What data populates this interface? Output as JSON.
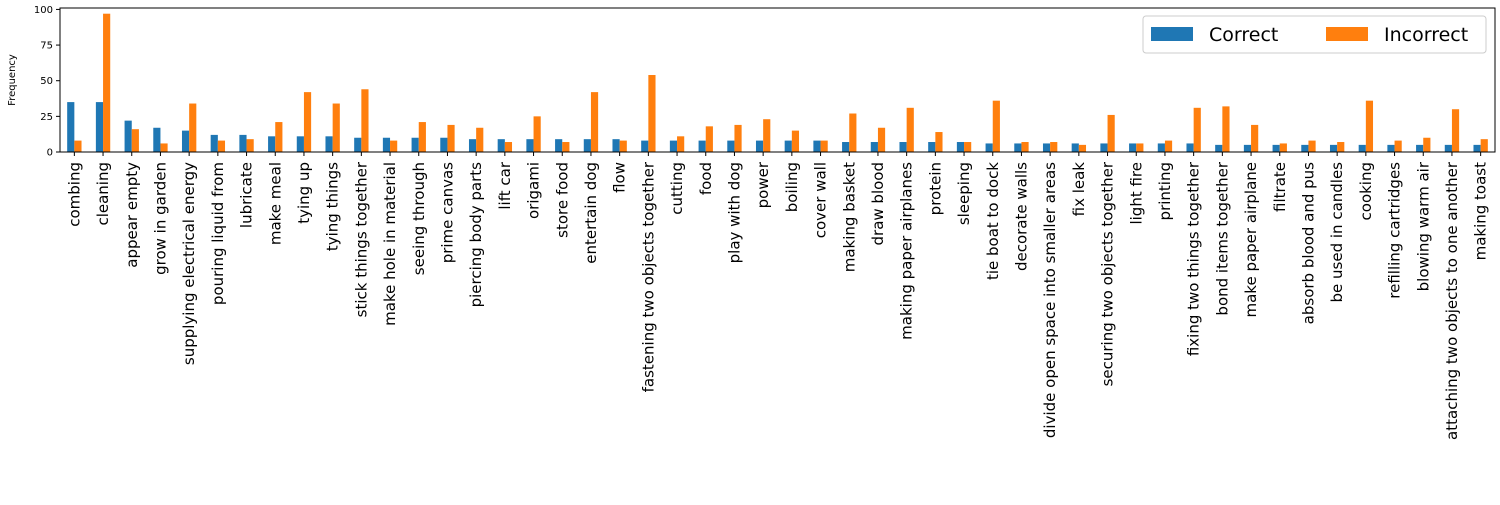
{
  "chart_data": {
    "type": "bar",
    "ylabel": "Frequency",
    "xlabel": "",
    "title": "",
    "ylim": [
      0,
      101
    ],
    "yticks": [
      0,
      25,
      50,
      75,
      100
    ],
    "grid": false,
    "legend_position": "top-right",
    "categories": [
      "combing",
      "cleaning",
      "appear empty",
      "grow in garden",
      "supplying electrical energy",
      "pouring liquid from",
      "lubricate",
      "make meal",
      "tying up",
      "tying things",
      "stick things together",
      "make hole in material",
      "seeing through",
      "prime canvas",
      "piercing body parts",
      "lift car",
      "origami",
      "store food",
      "entertain dog",
      "flow",
      "fastening two objects together",
      "cutting",
      "food",
      "play with dog",
      "power",
      "boiling",
      "cover wall",
      "making basket",
      "draw blood",
      "making paper airplanes",
      "protein",
      "sleeping",
      "tie boat to dock",
      "decorate walls",
      "divide open space into smaller areas",
      "fix leak",
      "securing two objects together",
      "light fire",
      "printing",
      "fixing two things together",
      "bond items together",
      "make paper airplane",
      "filtrate",
      "absorb blood and pus",
      "be used in candles",
      "cooking",
      "refilling cartridges",
      "blowing warm air",
      "attaching two objects to one another",
      "making toast"
    ],
    "series": [
      {
        "name": "Correct",
        "color": "#1f77b4",
        "values": [
          35,
          35,
          22,
          17,
          15,
          12,
          12,
          11,
          11,
          11,
          10,
          10,
          10,
          10,
          9,
          9,
          9,
          9,
          9,
          9,
          8,
          8,
          8,
          8,
          8,
          8,
          8,
          7,
          7,
          7,
          7,
          7,
          6,
          6,
          6,
          6,
          6,
          6,
          6,
          6,
          5,
          5,
          5,
          5,
          5,
          5,
          5,
          5,
          5,
          5
        ]
      },
      {
        "name": "Incorrect",
        "color": "#ff7f0e",
        "values": [
          8,
          97,
          16,
          6,
          34,
          8,
          9,
          21,
          42,
          34,
          44,
          8,
          21,
          19,
          17,
          7,
          25,
          7,
          42,
          8,
          54,
          11,
          18,
          19,
          23,
          15,
          8,
          27,
          17,
          31,
          14,
          7,
          36,
          7,
          7,
          5,
          26,
          6,
          8,
          31,
          32,
          19,
          6,
          8,
          7,
          36,
          8,
          10,
          30,
          9
        ]
      }
    ]
  }
}
